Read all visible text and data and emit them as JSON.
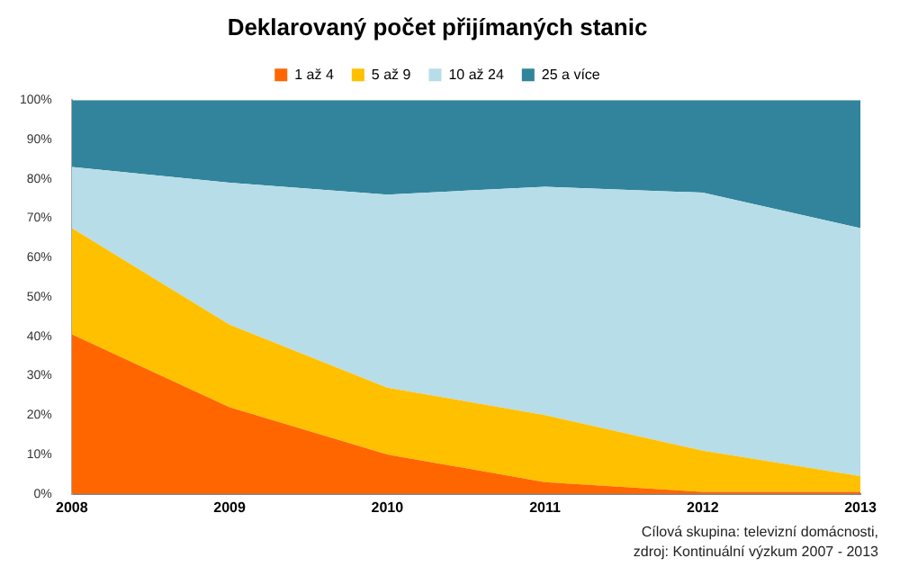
{
  "chart_data": {
    "type": "area",
    "title": "Deklarovaný počet přijímaných stanic",
    "categories": [
      "2008",
      "2009",
      "2010",
      "2011",
      "2012",
      "2013"
    ],
    "stacked": true,
    "series": [
      {
        "name": "1 až 4",
        "color": "#ff6600",
        "values": [
          40.5,
          22,
          10,
          3,
          0.5,
          0.5
        ]
      },
      {
        "name": "5 až 9",
        "color": "#ffc000",
        "values": [
          27,
          21,
          17,
          17,
          10.5,
          4
        ]
      },
      {
        "name": "10 až 24",
        "color": "#b7dde8",
        "values": [
          15.5,
          36,
          49,
          58,
          65.5,
          63
        ]
      },
      {
        "name": "25 a více",
        "color": "#31849b",
        "values": [
          17,
          21,
          24,
          22,
          23.5,
          32.5
        ]
      }
    ],
    "ylim": [
      0,
      100
    ],
    "yticks": [
      {
        "value": 0,
        "label": "0%"
      },
      {
        "value": 10,
        "label": "10%"
      },
      {
        "value": 20,
        "label": "20%"
      },
      {
        "value": 30,
        "label": "30%"
      },
      {
        "value": 40,
        "label": "40%"
      },
      {
        "value": 50,
        "label": "50%"
      },
      {
        "value": 60,
        "label": "60%"
      },
      {
        "value": 70,
        "label": "70%"
      },
      {
        "value": 80,
        "label": "80%"
      },
      {
        "value": 90,
        "label": "90%"
      },
      {
        "value": 100,
        "label": "100%"
      }
    ],
    "grid": false,
    "legend": "top",
    "annotations": [
      "Cílová skupina: televizní domácnosti,",
      "zdroj: Kontinuální výzkum 2007 - 2013"
    ]
  }
}
